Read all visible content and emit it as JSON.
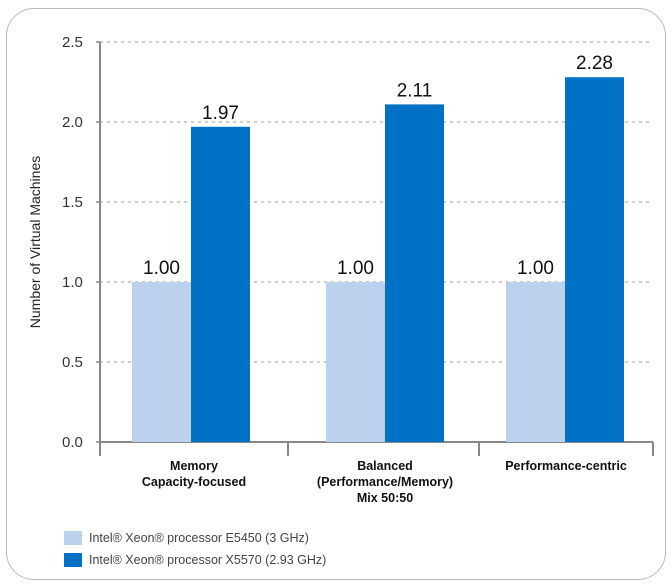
{
  "chart_data": {
    "type": "bar",
    "ylabel": "Number of Virtual Machines",
    "ylim": [
      0,
      2.5
    ],
    "yticks": [
      "0.0",
      "0.5",
      "1.0",
      "1.5",
      "2.0",
      "2.5"
    ],
    "grid": true,
    "legend_position": "bottom-left",
    "categories": [
      [
        "Memory",
        "Capacity-focused"
      ],
      [
        "Balanced",
        "(Performance/Memory)",
        "Mix 50:50"
      ],
      [
        "Performance-centric"
      ]
    ],
    "series": [
      {
        "name": "Intel® Xeon® processor E5450 (3 GHz)",
        "color": "#bcd1ee",
        "values": [
          1.0,
          1.0,
          1.0
        ],
        "labels": [
          "1.00",
          "1.00",
          "1.00"
        ]
      },
      {
        "name": "Intel® Xeon® processor X5570 (2.93 GHz)",
        "color": "#0071c5",
        "values": [
          1.97,
          2.11,
          2.28
        ],
        "labels": [
          "1.97",
          "2.11",
          "2.28"
        ]
      }
    ]
  }
}
